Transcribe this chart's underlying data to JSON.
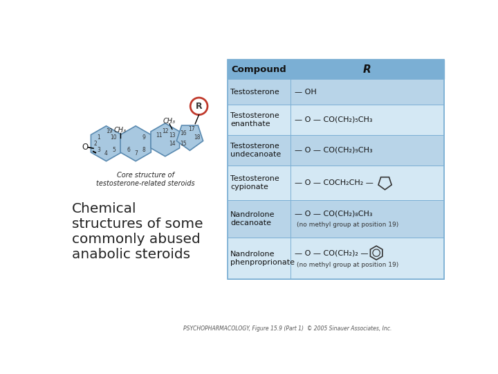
{
  "bg_color": "#ffffff",
  "table_header_bg": "#7bafd4",
  "table_row_bg_light": "#b8d4e8",
  "table_row_bg_lighter": "#d4e8f4",
  "table_border_color": "#7bafd4",
  "header_text": [
    "Compound",
    "R"
  ],
  "compounds": [
    "Testosterone",
    "Testosterone\nenanthate",
    "Testosterone\nundecanoate",
    "Testosterone\ncypionate",
    "Nandrolone\ndecanoate",
    "Nandrolone\nphenproprionate"
  ],
  "caption_text": "PSYCHOPHARMACOLOGY, Figure 15.9 (Part 1)  © 2005 Sinauer Associates, Inc.",
  "title_text": "Chemical\nstructures of some\ncommonly abused\nanabolic steroids",
  "core_label": "Core structure of\ntestosterone-related steroids",
  "steroid_color": "#a8c8e0",
  "ring_outline": "#5a8ab0",
  "r_circle_color": "#c0392b"
}
